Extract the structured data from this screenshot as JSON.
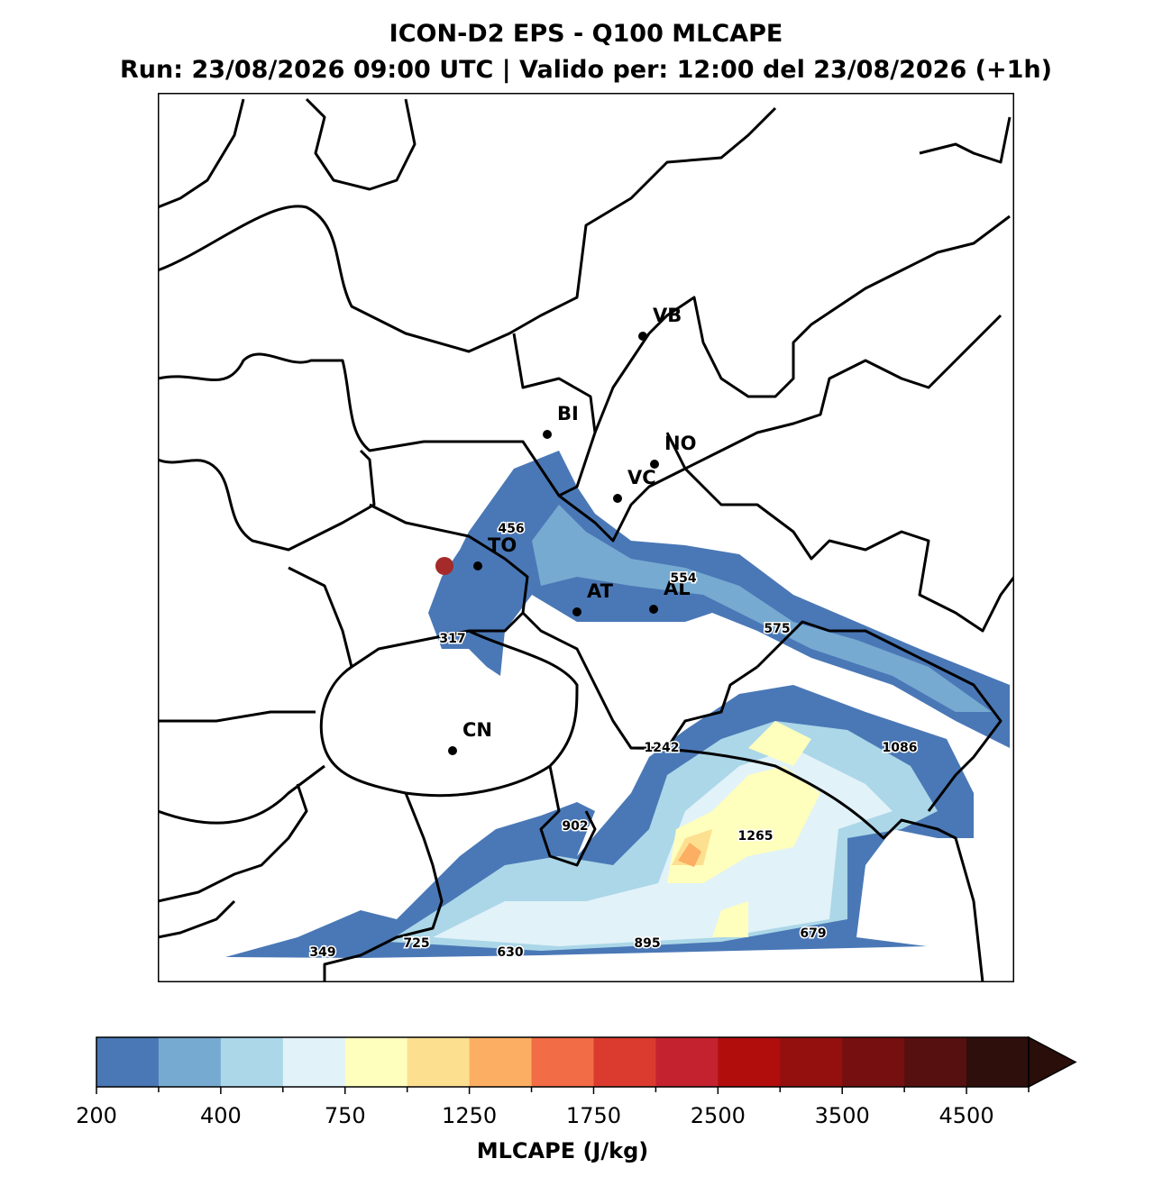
{
  "header": {
    "title": "ICON-D2 EPS - Q100 MLCAPE",
    "subtitle": "Run: 23/08/2026 09:00 UTC | Valido per: 12:00 del 23/08/2026 (+1h)"
  },
  "map": {
    "cities": [
      "VB",
      "BI",
      "NO",
      "VC",
      "TO",
      "AT",
      "AL",
      "CN"
    ],
    "value_labels": [
      456,
      317,
      554,
      575,
      1242,
      1086,
      902,
      1265,
      349,
      725,
      630,
      895,
      679
    ]
  },
  "colorbar": {
    "label": "MLCAPE (J/kg)",
    "colors": [
      "#4a78b6",
      "#77aad1",
      "#abd7e8",
      "#e1f2f8",
      "#fefebd",
      "#fddf90",
      "#fcae62",
      "#f26c45",
      "#da3b2e",
      "#c5222f",
      "#b10d0d",
      "#93100f",
      "#761010",
      "#571010",
      "#2e0f0c"
    ],
    "extend_color": "#2a0e0a",
    "ticks": [
      200,
      400,
      750,
      1250,
      1750,
      2500,
      3500,
      4500
    ]
  }
}
